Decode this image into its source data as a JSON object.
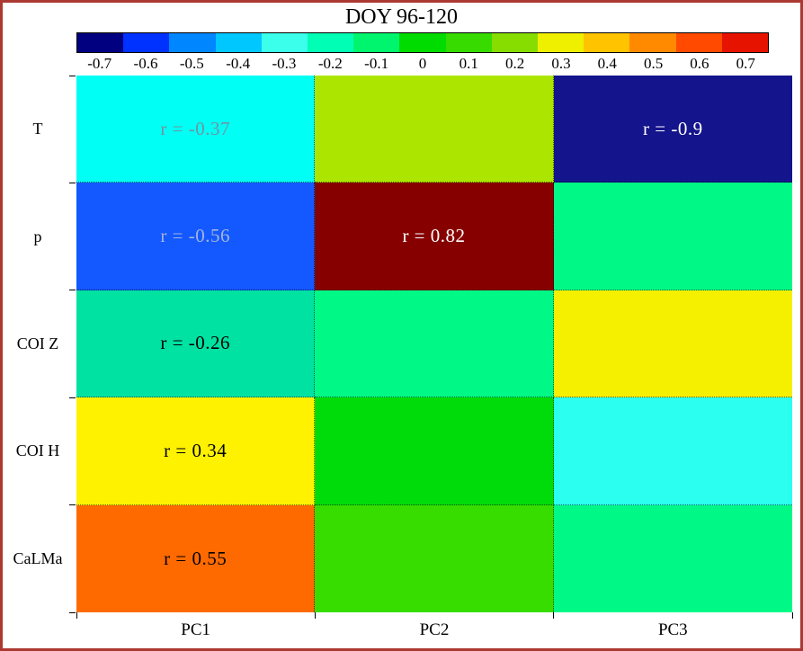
{
  "title": "DOY 96-120",
  "colors": {
    "frame_border": "#ac3931",
    "background": "#ffffff",
    "gridline": "rgba(0,0,0,0.6)"
  },
  "colorbar": {
    "segments": [
      {
        "label": "-0.7",
        "color": "#000080"
      },
      {
        "label": "-0.6",
        "color": "#0032ff"
      },
      {
        "label": "-0.5",
        "color": "#0087ff"
      },
      {
        "label": "-0.4",
        "color": "#00c8ff"
      },
      {
        "label": "-0.3",
        "color": "#3cffeb"
      },
      {
        "label": "-0.2",
        "color": "#00ffb4"
      },
      {
        "label": "-0.1",
        "color": "#00f56e"
      },
      {
        "label": "0",
        "color": "#00dc00"
      },
      {
        "label": "0.1",
        "color": "#37db00"
      },
      {
        "label": "0.2",
        "color": "#87dc00"
      },
      {
        "label": "0.3",
        "color": "#efef00"
      },
      {
        "label": "0.4",
        "color": "#ffc300"
      },
      {
        "label": "0.5",
        "color": "#ff8a00"
      },
      {
        "label": "0.6",
        "color": "#ff4a00"
      },
      {
        "label": "0.7",
        "color": "#e61300"
      }
    ]
  },
  "heatmap": {
    "rows": [
      "T",
      "p",
      "COI Z",
      "COI H",
      "CaLMa"
    ],
    "columns": [
      "PC1",
      "PC2",
      "PC3"
    ],
    "cells": [
      {
        "row": "T",
        "col": "PC1",
        "label": "r = -0.37",
        "value": -0.37,
        "color": "#00fff4",
        "text_color": "#6f95a4"
      },
      {
        "row": "T",
        "col": "PC2",
        "label": "",
        "value": null,
        "color": "#ace600",
        "text_color": "#000000"
      },
      {
        "row": "T",
        "col": "PC3",
        "label": "r = -0.9",
        "value": -0.9,
        "color": "#14148c",
        "text_color": "#ffffff"
      },
      {
        "row": "p",
        "col": "PC1",
        "label": "r = -0.56",
        "value": -0.56,
        "color": "#1359ff",
        "text_color": "#a6b4dc"
      },
      {
        "row": "p",
        "col": "PC2",
        "label": "r = 0.82",
        "value": 0.82,
        "color": "#870000",
        "text_color": "#ffffff"
      },
      {
        "row": "p",
        "col": "PC3",
        "label": "",
        "value": null,
        "color": "#00f986",
        "text_color": "#000000"
      },
      {
        "row": "COI Z",
        "col": "PC1",
        "label": "r = -0.26",
        "value": -0.26,
        "color": "#00e2a2",
        "text_color": "#000000"
      },
      {
        "row": "COI Z",
        "col": "PC2",
        "label": "",
        "value": null,
        "color": "#00f986",
        "text_color": "#000000"
      },
      {
        "row": "COI Z",
        "col": "PC3",
        "label": "",
        "value": null,
        "color": "#f5f000",
        "text_color": "#000000"
      },
      {
        "row": "COI H",
        "col": "PC1",
        "label": "r = 0.34",
        "value": 0.34,
        "color": "#fff200",
        "text_color": "#000000"
      },
      {
        "row": "COI H",
        "col": "PC2",
        "label": "",
        "value": null,
        "color": "#00dc0a",
        "text_color": "#000000"
      },
      {
        "row": "COI H",
        "col": "PC3",
        "label": "",
        "value": null,
        "color": "#2bfff0",
        "text_color": "#000000"
      },
      {
        "row": "CaLMa",
        "col": "PC1",
        "label": "r = 0.55",
        "value": 0.55,
        "color": "#ff6a00",
        "text_color": "#000000"
      },
      {
        "row": "CaLMa",
        "col": "PC2",
        "label": "",
        "value": null,
        "color": "#38dd00",
        "text_color": "#000000"
      },
      {
        "row": "CaLMa",
        "col": "PC3",
        "label": "",
        "value": null,
        "color": "#00f986",
        "text_color": "#000000"
      }
    ]
  },
  "chart_data": {
    "type": "heatmap",
    "title": "DOY 96-120",
    "x_categories": [
      "PC1",
      "PC2",
      "PC3"
    ],
    "y_categories": [
      "T",
      "p",
      "COI Z",
      "COI H",
      "CaLMa"
    ],
    "colorbar_ticks": [
      -0.7,
      -0.6,
      -0.5,
      -0.4,
      -0.3,
      -0.2,
      -0.1,
      0,
      0.1,
      0.2,
      0.3,
      0.4,
      0.5,
      0.6,
      0.7
    ],
    "colorbar_range": [
      -0.75,
      0.75
    ],
    "legend_position": "top",
    "grid": "dotted",
    "value_label_format": "r = {value}",
    "values": [
      [
        -0.37,
        null,
        -0.9
      ],
      [
        -0.56,
        0.82,
        null
      ],
      [
        -0.26,
        null,
        null
      ],
      [
        0.34,
        null,
        null
      ],
      [
        0.55,
        null,
        null
      ]
    ]
  }
}
